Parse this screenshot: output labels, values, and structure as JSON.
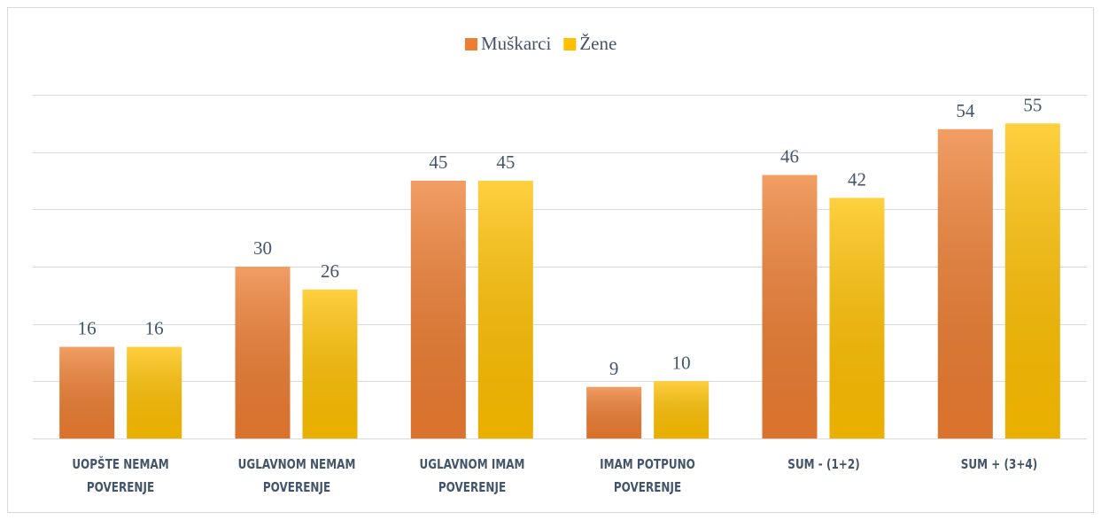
{
  "chart_data": {
    "type": "bar",
    "categories": [
      "UOPŠTE NEMAM POVERENJE",
      "UGLAVNOM NEMAM POVERENJE",
      "UGLAVNOM IMAM POVERENJE",
      "IMAM POTPUNO POVERENJE",
      "SUM - (1+2)",
      "SUM + (3+4)"
    ],
    "series": [
      {
        "name": "Muškarci",
        "color": "#ed7d31",
        "values": [
          16,
          30,
          45,
          9,
          46,
          54
        ]
      },
      {
        "name": "Žene",
        "color": "#ffc000",
        "values": [
          16,
          26,
          45,
          10,
          42,
          55
        ]
      }
    ],
    "ylim": [
      0,
      60
    ],
    "yticks": [
      0,
      10,
      20,
      30,
      40,
      50,
      60
    ],
    "grid": true,
    "legend": "top"
  }
}
